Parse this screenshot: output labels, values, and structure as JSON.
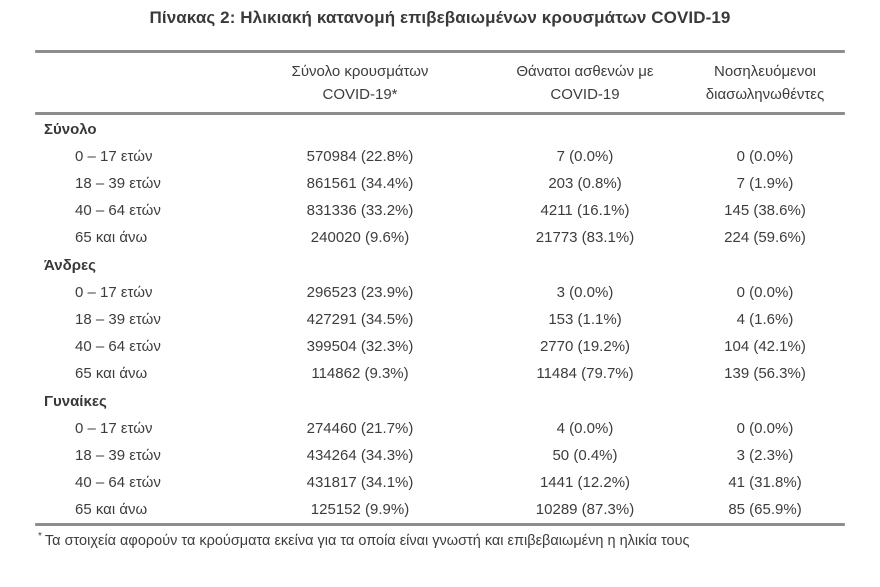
{
  "title": "Πίνακας 2: Ηλικιακή κατανομή επιβεβαιωμένων κρουσμάτων COVID-19",
  "table": {
    "columns": [
      {
        "line1": "",
        "line2": ""
      },
      {
        "line1": "Σύνολο κρουσμάτων",
        "line2": "COVID-19*"
      },
      {
        "line1": "Θάνατοι ασθενών με",
        "line2": "COVID-19"
      },
      {
        "line1": "Νοσηλευόμενοι",
        "line2": "διασωληνωθέντες"
      }
    ],
    "sections": [
      {
        "name": "Σύνολο",
        "rows": [
          {
            "age": "0 – 17 ετών",
            "cases": "570984 (22.8%)",
            "deaths": "7 (0.0%)",
            "intubated": "0 (0.0%)"
          },
          {
            "age": "18 – 39 ετών",
            "cases": "861561 (34.4%)",
            "deaths": "203 (0.8%)",
            "intubated": "7 (1.9%)"
          },
          {
            "age": "40 – 64 ετών",
            "cases": "831336 (33.2%)",
            "deaths": "4211 (16.1%)",
            "intubated": "145 (38.6%)"
          },
          {
            "age": "65 και άνω",
            "cases": "240020 (9.6%)",
            "deaths": "21773 (83.1%)",
            "intubated": "224 (59.6%)"
          }
        ]
      },
      {
        "name": "Άνδρες",
        "rows": [
          {
            "age": "0 – 17 ετών",
            "cases": "296523 (23.9%)",
            "deaths": "3 (0.0%)",
            "intubated": "0 (0.0%)"
          },
          {
            "age": "18 – 39 ετών",
            "cases": "427291 (34.5%)",
            "deaths": "153 (1.1%)",
            "intubated": "4 (1.6%)"
          },
          {
            "age": "40 – 64 ετών",
            "cases": "399504 (32.3%)",
            "deaths": "2770 (19.2%)",
            "intubated": "104 (42.1%)"
          },
          {
            "age": "65 και άνω",
            "cases": "114862 (9.3%)",
            "deaths": "11484 (79.7%)",
            "intubated": "139 (56.3%)"
          }
        ]
      },
      {
        "name": "Γυναίκες",
        "rows": [
          {
            "age": "0 – 17 ετών",
            "cases": "274460 (21.7%)",
            "deaths": "4 (0.0%)",
            "intubated": "0 (0.0%)"
          },
          {
            "age": "18 – 39 ετών",
            "cases": "434264 (34.3%)",
            "deaths": "50 (0.4%)",
            "intubated": "3 (2.3%)"
          },
          {
            "age": "40 – 64 ετών",
            "cases": "431817 (34.1%)",
            "deaths": "1441 (12.2%)",
            "intubated": "41 (31.8%)"
          },
          {
            "age": "65 και άνω",
            "cases": "125152 (9.9%)",
            "deaths": "10289 (87.3%)",
            "intubated": "85 (65.9%)"
          }
        ]
      }
    ]
  },
  "footnote": {
    "marker": "*",
    "text": "Τα στοιχεία αφορούν τα κρούσματα εκείνα για τα οποία είναι γνωστή και επιβεβαιωμένη η ηλικία τους"
  }
}
